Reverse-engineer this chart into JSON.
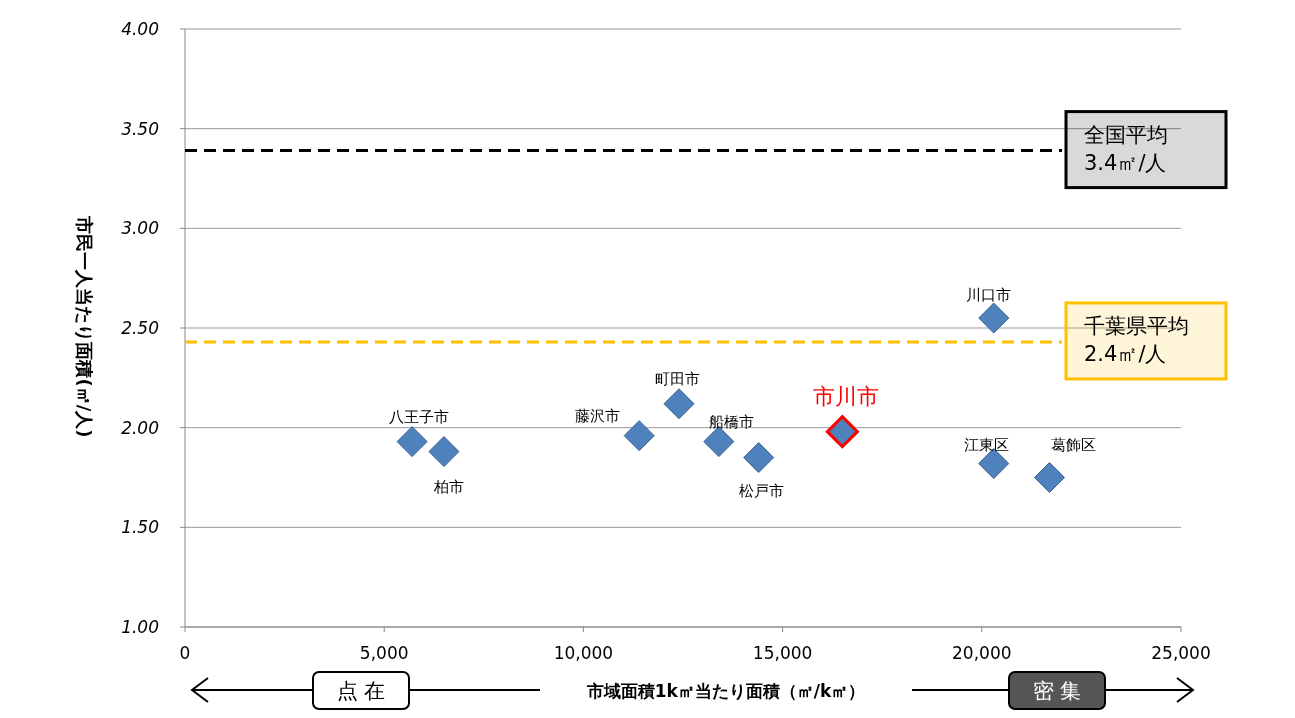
{
  "chart_data": {
    "type": "scatter",
    "xlabel": "市域面積1k㎡当たり面積（㎡/k㎡）",
    "ylabel": "市民一人当たり面積(㎡/人)",
    "xlim": [
      0,
      25000
    ],
    "xticks": [
      {
        "value": 0,
        "label": "0"
      },
      {
        "value": 5000,
        "label": "5,000"
      },
      {
        "value": 10000,
        "label": "10,000"
      },
      {
        "value": 15000,
        "label": "15,000"
      },
      {
        "value": 20000,
        "label": "20,000"
      },
      {
        "value": 25000,
        "label": "25,000"
      }
    ],
    "ylim": [
      1,
      4
    ],
    "yticks": [
      {
        "value": 1,
        "label": "1.00"
      },
      {
        "value": 1.5,
        "label": "1.50"
      },
      {
        "value": 2,
        "label": "2.00"
      },
      {
        "value": 2.5,
        "label": "2.50"
      },
      {
        "value": 3,
        "label": "3.00"
      },
      {
        "value": 3.5,
        "label": "3.50"
      },
      {
        "value": 4,
        "label": "4.00"
      }
    ],
    "grid": "y",
    "marker": "diamond",
    "series": [
      {
        "color": "#4f81bd",
        "x": [
          5700,
          6500,
          11400,
          12400,
          13400,
          14400,
          16500,
          20300,
          20300,
          21700
        ],
        "values": [
          1.93,
          1.88,
          1.96,
          2.12,
          1.93,
          1.85,
          1.98,
          2.55,
          1.82,
          1.75
        ],
        "colors": [
          "#4f81bd",
          "#4f81bd",
          "#4f81bd",
          "#4f81bd",
          "#4f81bd",
          "#4f81bd",
          "#ff0000",
          "#4f81bd",
          "#4f81bd",
          "#4f81bd"
        ]
      }
    ],
    "ref_lines": [
      {
        "axis": "y",
        "value": 3.39,
        "label": "全国平均\n3.4㎡/人",
        "color": "#000000",
        "line_style": "dashed"
      },
      {
        "axis": "y",
        "value": 2.43,
        "label": "千葉県平均\n2.4㎡/人",
        "color": "#ffc000",
        "line_style": "dashed"
      }
    ],
    "annotations": [
      {
        "text": "八王子市",
        "x": 5700,
        "y": 1.93
      },
      {
        "text": "柏市",
        "x": 6500,
        "y": 1.88
      },
      {
        "text": "藤沢市",
        "x": 11400,
        "y": 1.96
      },
      {
        "text": "町田市",
        "x": 12400,
        "y": 2.12
      },
      {
        "text": "船橋市",
        "x": 13400,
        "y": 1.93
      },
      {
        "text": "松戸市",
        "x": 14400,
        "y": 1.85
      },
      {
        "text": "市川市",
        "x": 16500,
        "y": 1.98
      },
      {
        "text": "川口市",
        "x": 20300,
        "y": 2.55
      },
      {
        "text": "江東区",
        "x": 20300,
        "y": 1.82
      },
      {
        "text": "葛飾区",
        "x": 21700,
        "y": 1.75
      },
      "点 在",
      "密 集"
    ]
  }
}
